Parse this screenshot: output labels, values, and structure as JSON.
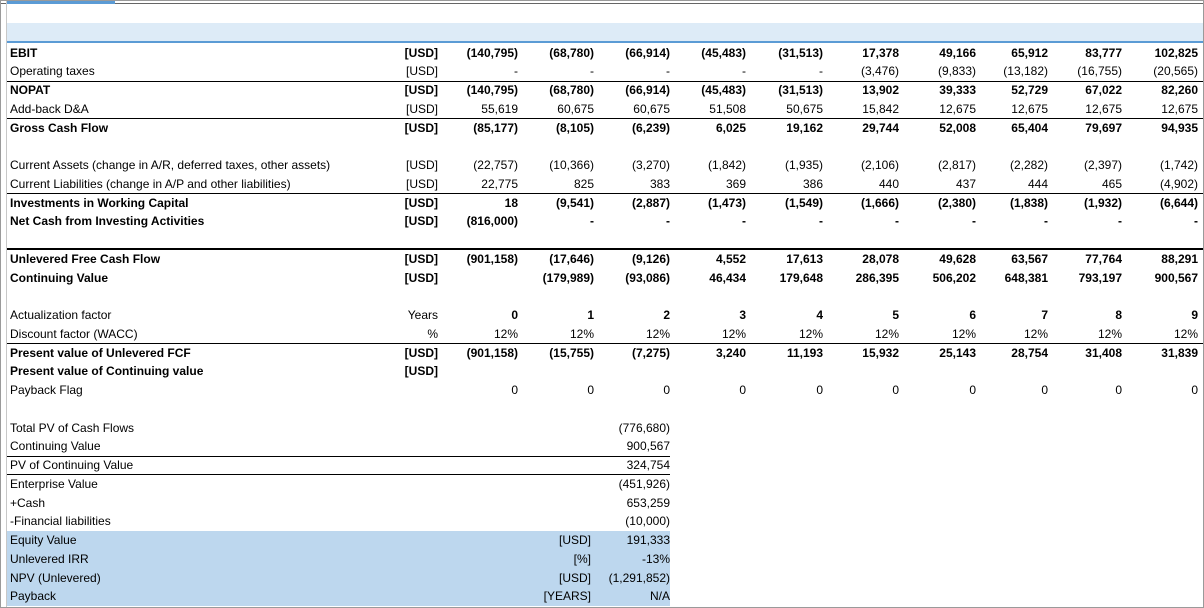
{
  "sections": [
    [
      {
        "label": "EBIT",
        "unit": "[USD]",
        "bold": true,
        "values": [
          "(140,795)",
          "(68,780)",
          "(66,914)",
          "(45,483)",
          "(31,513)",
          "17,378",
          "49,166",
          "65,912",
          "83,777",
          "102,825"
        ]
      },
      {
        "label": "Operating taxes",
        "unit": "[USD]",
        "values": [
          "-",
          "-",
          "-",
          "-",
          "-",
          "(3,476)",
          "(9,833)",
          "(13,182)",
          "(16,755)",
          "(20,565)"
        ]
      },
      {
        "label": "NOPAT",
        "unit": "[USD]",
        "bold": true,
        "values": [
          "(140,795)",
          "(68,780)",
          "(66,914)",
          "(45,483)",
          "(31,513)",
          "13,902",
          "39,333",
          "52,729",
          "67,022",
          "82,260"
        ]
      },
      {
        "label": "Add-back D&A",
        "unit": "[USD]",
        "values": [
          "55,619",
          "60,675",
          "60,675",
          "51,508",
          "50,675",
          "15,842",
          "12,675",
          "12,675",
          "12,675",
          "12,675"
        ]
      },
      {
        "label": "Gross Cash Flow",
        "unit": "[USD]",
        "bold": true,
        "values": [
          "(85,177)",
          "(8,105)",
          "(6,239)",
          "6,025",
          "19,162",
          "29,744",
          "52,008",
          "65,404",
          "79,697",
          "94,935"
        ]
      }
    ],
    [
      {
        "label": "Current Assets (change in A/R, deferred taxes, other assets)",
        "unit": "[USD]",
        "values": [
          "(22,757)",
          "(10,366)",
          "(3,270)",
          "(1,842)",
          "(1,935)",
          "(2,106)",
          "(2,817)",
          "(2,282)",
          "(2,397)",
          "(1,742)"
        ]
      },
      {
        "label": "Current Liabilities (change in A/P and other liabilities)",
        "unit": "[USD]",
        "values": [
          "22,775",
          "825",
          "383",
          "369",
          "386",
          "440",
          "437",
          "444",
          "465",
          "(4,902)"
        ]
      },
      {
        "label": "Investments in Working Capital",
        "unit": "[USD]",
        "bold": true,
        "values": [
          "18",
          "(9,541)",
          "(2,887)",
          "(1,473)",
          "(1,549)",
          "(1,666)",
          "(2,380)",
          "(1,838)",
          "(1,932)",
          "(6,644)"
        ]
      },
      {
        "label": "Net Cash from Investing Activities",
        "unit": "[USD]",
        "bold": true,
        "values": [
          "(816,000)",
          "-",
          "-",
          "-",
          "-",
          "-",
          "-",
          "-",
          "-",
          "-"
        ]
      }
    ],
    [
      {
        "label": "Unlevered Free Cash Flow",
        "unit": "[USD]",
        "bold": true,
        "values": [
          "(901,158)",
          "(17,646)",
          "(9,126)",
          "4,552",
          "17,613",
          "28,078",
          "49,628",
          "63,567",
          "77,764",
          "88,291"
        ]
      },
      {
        "label": "Continuing Value",
        "unit": "[USD]",
        "bold": true,
        "values": [
          null,
          "(179,989)",
          "(93,086)",
          "46,434",
          "179,648",
          "286,395",
          "506,202",
          "648,381",
          "793,197",
          "900,567"
        ]
      }
    ],
    [
      {
        "label": "Actualization factor",
        "unit": "Years",
        "bold_values": true,
        "values": [
          "0",
          "1",
          "2",
          "3",
          "4",
          "5",
          "6",
          "7",
          "8",
          "9"
        ]
      },
      {
        "label": "Discount factor (WACC)",
        "unit": "%",
        "values": [
          "12%",
          "12%",
          "12%",
          "12%",
          "12%",
          "12%",
          "12%",
          "12%",
          "12%",
          "12%"
        ]
      },
      {
        "label": "Present value of Unlevered FCF",
        "unit": "[USD]",
        "bold": true,
        "values": [
          "(901,158)",
          "(15,755)",
          "(7,275)",
          "3,240",
          "11,193",
          "15,932",
          "25,143",
          "28,754",
          "31,408",
          "31,839"
        ]
      },
      {
        "label": "Present value of Continuing  value",
        "unit": "[USD]",
        "bold": true
      },
      {
        "label": "Payback Flag",
        "values": [
          "0",
          "0",
          "0",
          "0",
          "0",
          "0",
          "0",
          "0",
          "0",
          "0"
        ]
      }
    ]
  ],
  "summary": [
    {
      "label": "Total PV of Cash Flows",
      "value": "(776,680)"
    },
    {
      "label": "Continuing Value",
      "value": "900,567"
    },
    {
      "label": "PV of Continuing Value",
      "value": "324,754"
    },
    {
      "label": "Enterprise Value",
      "value": "(451,926)"
    },
    {
      "label": "+Cash",
      "value": "653,259"
    },
    {
      "label": "-Financial liabilities",
      "value": "(10,000)"
    },
    {
      "label": "Equity Value",
      "unit": "[USD]",
      "value": "191,333",
      "highlight": true
    },
    {
      "label": "Unlevered IRR",
      "unit": "[%]",
      "value": "-13%",
      "highlight": true
    },
    {
      "label": "NPV (Unlevered)",
      "unit": "[USD]",
      "value": "(1,291,852)",
      "highlight": true
    },
    {
      "label": "Payback",
      "unit": "[YEARS]",
      "value": "N/A",
      "highlight": true
    }
  ]
}
